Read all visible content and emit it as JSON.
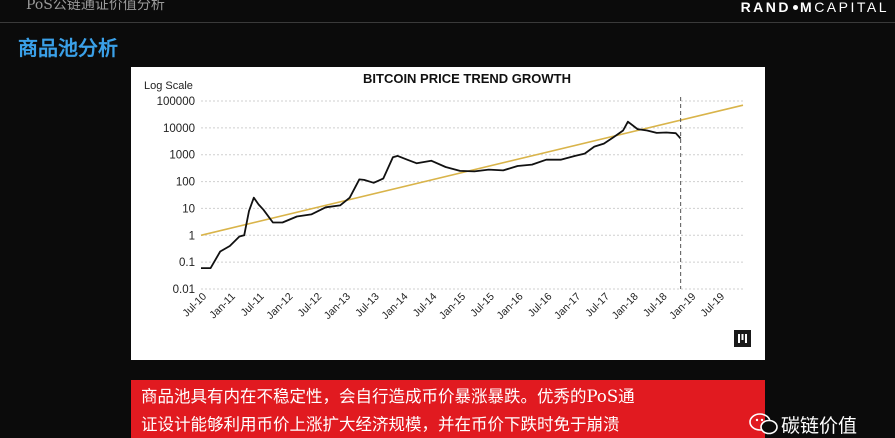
{
  "header": {
    "doc_title": "PoS公链通证价值分析",
    "brand": {
      "part1": "RAND",
      "part2": "M",
      "part3": "CAPITAL"
    }
  },
  "section_title": "商品池分析",
  "chart_data": {
    "type": "line",
    "title": "BITCOIN PRICE TREND GROWTH",
    "ylabel": "Log Scale",
    "scale": "log",
    "ylim": [
      0.01,
      100000
    ],
    "y_ticks": [
      "100000",
      "10000",
      "1000",
      "100",
      "10",
      "1",
      "0.1",
      "0.01"
    ],
    "y_tick_values": [
      100000,
      10000,
      1000,
      100,
      10,
      1,
      0.1,
      0.01
    ],
    "x_ticks": [
      "Jul-10",
      "Jan-11",
      "Jul-11",
      "Jan-12",
      "Jul-12",
      "Jan-13",
      "Jul-13",
      "Jan-14",
      "Jul-14",
      "Jan-15",
      "Jul-15",
      "Jan-16",
      "Jul-16",
      "Jan-17",
      "Jul-17",
      "Jan-18",
      "Jul-18",
      "Jan-19",
      "Jul-19"
    ],
    "xlim": [
      "2010-07",
      "2019-12"
    ],
    "grid": true,
    "legend": "none",
    "series": [
      {
        "color": "#111111",
        "dates": [
          "2010-07",
          "2010-09",
          "2010-11",
          "2011-01",
          "2011-03",
          "2011-04",
          "2011-05",
          "2011-06",
          "2011-07",
          "2011-08",
          "2011-10",
          "2011-12",
          "2012-03",
          "2012-06",
          "2012-09",
          "2012-12",
          "2013-02",
          "2013-04",
          "2013-05",
          "2013-07",
          "2013-09",
          "2013-11",
          "2013-12",
          "2014-02",
          "2014-04",
          "2014-07",
          "2014-10",
          "2015-01",
          "2015-04",
          "2015-07",
          "2015-10",
          "2016-01",
          "2016-04",
          "2016-07",
          "2016-10",
          "2017-01",
          "2017-03",
          "2017-05",
          "2017-07",
          "2017-09",
          "2017-11",
          "2017-12",
          "2018-02",
          "2018-04",
          "2018-06",
          "2018-08",
          "2018-10",
          "2018-11"
        ],
        "values": [
          0.06,
          0.06,
          0.25,
          0.4,
          0.9,
          1.0,
          8,
          25,
          14,
          9,
          3,
          3,
          5,
          6,
          11,
          13,
          25,
          120,
          115,
          90,
          130,
          800,
          900,
          650,
          480,
          600,
          350,
          250,
          240,
          280,
          260,
          380,
          430,
          650,
          650,
          900,
          1100,
          2000,
          2600,
          4500,
          8000,
          17000,
          9000,
          8000,
          6500,
          6700,
          6300,
          4000
        ]
      }
    ],
    "trend_line": {
      "color": "#d9b44a",
      "dates": [
        "2010-07",
        "2019-12"
      ],
      "values": [
        1,
        70000
      ]
    },
    "marker_date": "2018-11"
  },
  "caption": {
    "line1": "商品池具有内在不稳定性，会自行造成币价暴涨暴跌。优秀的PoS通",
    "line2": "证设计能够利用币价上涨扩大经济规模，并在币价下跌时免于崩溃"
  },
  "watermark": {
    "text": "碳链价值"
  }
}
